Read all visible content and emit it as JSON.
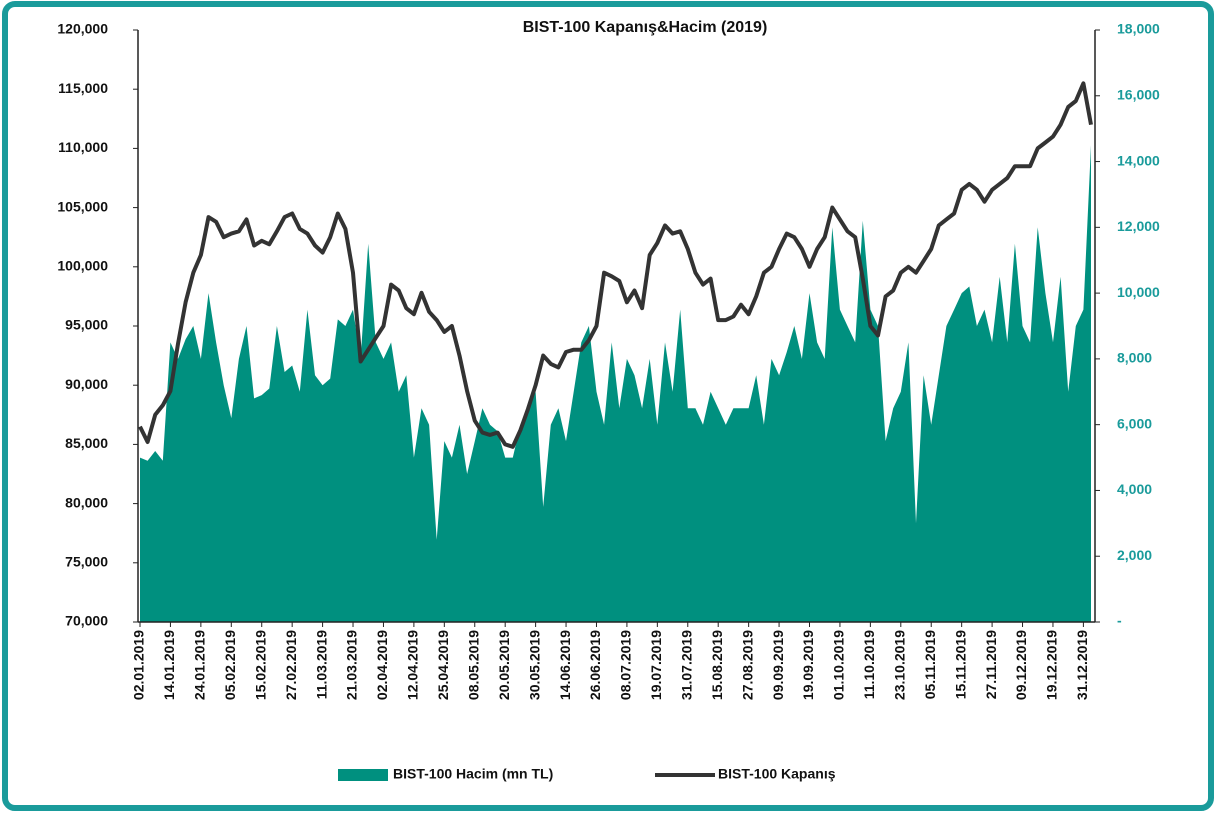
{
  "chart_data": {
    "type": "area-line",
    "title": "BIST-100 Kapanış&Hacim (2019)",
    "categories": [
      "02.01.2019",
      null,
      null,
      null,
      "14.01.2019",
      null,
      null,
      null,
      "24.01.2019",
      null,
      null,
      null,
      "05.02.2019",
      null,
      null,
      null,
      "15.02.2019",
      null,
      null,
      null,
      "27.02.2019",
      null,
      null,
      null,
      "11.03.2019",
      null,
      null,
      null,
      "21.03.2019",
      null,
      null,
      null,
      "02.04.2019",
      null,
      null,
      null,
      "12.04.2019",
      null,
      null,
      null,
      "25.04.2019",
      null,
      null,
      null,
      "08.05.2019",
      null,
      null,
      null,
      "20.05.2019",
      null,
      null,
      null,
      "30.05.2019",
      null,
      null,
      null,
      "14.06.2019",
      null,
      null,
      null,
      "26.06.2019",
      null,
      null,
      null,
      "08.07.2019",
      null,
      null,
      null,
      "19.07.2019",
      null,
      null,
      null,
      "31.07.2019",
      null,
      null,
      null,
      "15.08.2019",
      null,
      null,
      null,
      "27.08.2019",
      null,
      null,
      null,
      "09.09.2019",
      null,
      null,
      null,
      "19.09.2019",
      null,
      null,
      null,
      "01.10.2019",
      null,
      null,
      null,
      "11.10.2019",
      null,
      null,
      null,
      "23.10.2019",
      null,
      null,
      null,
      "05.11.2019",
      null,
      null,
      null,
      "15.11.2019",
      null,
      null,
      null,
      "27.11.2019",
      null,
      null,
      null,
      "09.12.2019",
      null,
      null,
      null,
      "19.12.2019",
      null,
      null,
      null,
      "31.12.2019",
      null
    ],
    "series": [
      {
        "name": "BIST-100 Hacim (mn TL)",
        "color": "#00907f",
        "kind": "area",
        "axis": "y2",
        "values": [
          5000,
          4900,
          5200,
          4900,
          8500,
          8000,
          8600,
          9000,
          8000,
          10000,
          8500,
          7200,
          6200,
          8000,
          9000,
          6800,
          6900,
          7100,
          9000,
          7600,
          7800,
          7000,
          9500,
          7500,
          7200,
          7400,
          9200,
          9000,
          9500,
          8000,
          11500,
          8500,
          8000,
          8500,
          7000,
          7500,
          5000,
          6500,
          6000,
          2500,
          5500,
          5000,
          6000,
          4500,
          5500,
          6500,
          6000,
          5800,
          5000,
          5000,
          6000,
          6500,
          7000,
          3500,
          6000,
          6500,
          5500,
          7000,
          8500,
          9000,
          7000,
          6000,
          8500,
          6500,
          8000,
          7500,
          6500,
          8000,
          6000,
          8500,
          7000,
          9500,
          6500,
          6500,
          6000,
          7000,
          6500,
          6000,
          6500,
          6500,
          6500,
          7500,
          6000,
          8000,
          7500,
          8200,
          9000,
          8000,
          10000,
          8500,
          8000,
          12000,
          9500,
          9000,
          8500,
          12200,
          9500,
          9000,
          5500,
          6500,
          7000,
          8500,
          3000,
          7500,
          6000,
          7500,
          9000,
          9500,
          10000,
          10200,
          9000,
          9500,
          8500,
          10500,
          8500,
          11500,
          9000,
          8500,
          12000,
          10000,
          8500,
          10500,
          7000,
          9000,
          9500,
          14500
        ]
      },
      {
        "name": "BIST-100 Kapanış",
        "color": "#333333",
        "kind": "line",
        "values": [
          86500,
          85200,
          87500,
          88300,
          89500,
          93500,
          97000,
          99500,
          101000,
          104200,
          103800,
          102500,
          102800,
          103000,
          104000,
          101800,
          102200,
          101900,
          103000,
          104200,
          104500,
          103200,
          102800,
          101800,
          101200,
          102500,
          104500,
          103200,
          99500,
          92000,
          93000,
          94000,
          95000,
          98500,
          98000,
          96500,
          96000,
          97800,
          96200,
          95500,
          94500,
          95000,
          92500,
          89500,
          87000,
          86000,
          85800,
          86000,
          85000,
          84800,
          86200,
          88000,
          90000,
          92500,
          91800,
          91500,
          92800,
          93000,
          93000,
          93800,
          95000,
          99500,
          99200,
          98800,
          97000,
          98000,
          96500,
          101000,
          102000,
          103500,
          102800,
          103000,
          101500,
          99500,
          98500,
          99000,
          95500,
          95500,
          95800,
          96800,
          96000,
          97500,
          99500,
          100000,
          101500,
          102800,
          102500,
          101500,
          100000,
          101500,
          102500,
          105000,
          104000,
          103000,
          102500,
          99000,
          95000,
          94200,
          97500,
          98000,
          99500,
          100000,
          99500,
          100500,
          101500,
          103500,
          104000,
          104500,
          106500,
          107000,
          106500,
          105500,
          106500,
          107000,
          107500,
          108500,
          108500,
          108500,
          110000,
          110500,
          111000,
          112000,
          113500,
          114000,
          115500,
          112000
        ]
      }
    ],
    "ylim": [
      70000,
      120000
    ],
    "yticks": [
      {
        "value": 70000,
        "label": "70,000"
      },
      {
        "value": 75000,
        "label": "75,000"
      },
      {
        "value": 80000,
        "label": "80,000"
      },
      {
        "value": 85000,
        "label": "85,000"
      },
      {
        "value": 90000,
        "label": "90,000"
      },
      {
        "value": 95000,
        "label": "95,000"
      },
      {
        "value": 100000,
        "label": "100,000"
      },
      {
        "value": 105000,
        "label": "105,000"
      },
      {
        "value": 110000,
        "label": "110,000"
      },
      {
        "value": 115000,
        "label": "115,000"
      },
      {
        "value": 120000,
        "label": "120,000"
      }
    ],
    "y2lim": [
      0,
      18000
    ],
    "y2ticks": [
      {
        "value": 0,
        "label": "-"
      },
      {
        "value": 2000,
        "label": "2,000"
      },
      {
        "value": 4000,
        "label": "4,000"
      },
      {
        "value": 6000,
        "label": "6,000"
      },
      {
        "value": 8000,
        "label": "8,000"
      },
      {
        "value": 10000,
        "label": "10,000"
      },
      {
        "value": 12000,
        "label": "12,000"
      },
      {
        "value": 14000,
        "label": "14,000"
      },
      {
        "value": 16000,
        "label": "16,000"
      },
      {
        "value": 18000,
        "label": "18,000"
      }
    ],
    "y2color": "#1a9b9b",
    "legend": "bottom"
  }
}
